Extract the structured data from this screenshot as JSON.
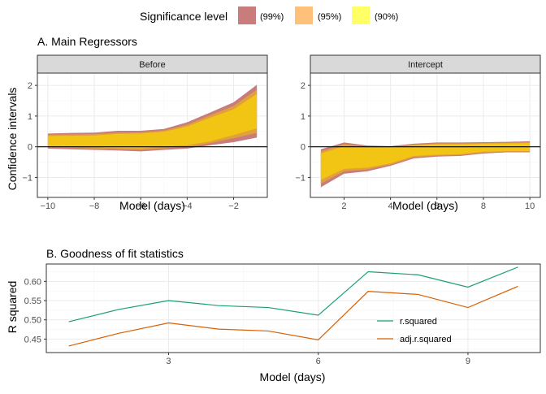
{
  "legend": {
    "title": "Significance level",
    "items": [
      {
        "label": "(99%)",
        "color": "#C97C7C"
      },
      {
        "label": "(95%)",
        "color": "#FFC17A"
      },
      {
        "label": "(90%)",
        "color": "#FFFF66"
      }
    ]
  },
  "section_a_title": "A. Main Regressors",
  "section_b_title": "B. Goodness of fit statistics",
  "band_colors": {
    "c99": "#C97C7C",
    "c95": "#E0A03A",
    "c90": "#F2C414"
  },
  "chart_data": [
    {
      "type": "area",
      "panel": "Before",
      "title": "Before",
      "xlabel": "Model (days)",
      "ylabel": "Confidence intervals",
      "xlim": [
        -10.45,
        -0.55
      ],
      "ylim": [
        -1.65,
        2.4
      ],
      "xticks": [
        -10,
        -8,
        -6,
        -4,
        -2
      ],
      "yticks": [
        -1,
        0,
        1,
        2
      ],
      "hline": 0,
      "x": [
        -10,
        -9,
        -8,
        -7,
        -6,
        -5,
        -4,
        -3,
        -2,
        -1
      ],
      "bands": {
        "ci99": {
          "lower": [
            -0.06,
            -0.08,
            -0.1,
            -0.12,
            -0.15,
            -0.1,
            -0.06,
            0.05,
            0.15,
            0.3
          ],
          "upper": [
            0.43,
            0.45,
            0.46,
            0.52,
            0.52,
            0.58,
            0.8,
            1.12,
            1.45,
            2.02
          ]
        },
        "ci95": {
          "lower": [
            -0.03,
            -0.04,
            -0.06,
            -0.08,
            -0.1,
            -0.05,
            -0.01,
            0.12,
            0.28,
            0.45
          ],
          "upper": [
            0.39,
            0.4,
            0.41,
            0.46,
            0.47,
            0.53,
            0.72,
            1.03,
            1.33,
            1.86
          ]
        },
        "ci90": {
          "lower": [
            0.0,
            0.0,
            -0.02,
            -0.04,
            -0.05,
            0.0,
            0.05,
            0.18,
            0.38,
            0.6
          ],
          "upper": [
            0.35,
            0.36,
            0.37,
            0.42,
            0.43,
            0.49,
            0.66,
            0.95,
            1.22,
            1.72
          ]
        }
      }
    },
    {
      "type": "area",
      "panel": "Intercept",
      "title": "Intercept",
      "xlabel": "Model (days)",
      "ylabel": "",
      "xlim": [
        0.55,
        10.45
      ],
      "ylim": [
        -1.65,
        2.4
      ],
      "xticks": [
        2,
        4,
        6,
        8,
        10
      ],
      "yticks": [
        -1,
        0,
        1,
        2
      ],
      "hline": 0,
      "x": [
        1,
        2,
        3,
        4,
        5,
        6,
        7,
        8,
        9,
        10
      ],
      "bands": {
        "ci99": {
          "lower": [
            -1.32,
            -0.88,
            -0.8,
            -0.62,
            -0.38,
            -0.32,
            -0.3,
            -0.22,
            -0.18,
            -0.18
          ],
          "upper": [
            -0.08,
            0.14,
            0.04,
            0.02,
            0.1,
            0.14,
            0.14,
            0.15,
            0.16,
            0.18
          ]
        },
        "ci95": {
          "lower": [
            -1.2,
            -0.8,
            -0.74,
            -0.58,
            -0.34,
            -0.29,
            -0.27,
            -0.19,
            -0.16,
            -0.16
          ],
          "upper": [
            -0.15,
            0.08,
            0.01,
            0.0,
            0.07,
            0.11,
            0.11,
            0.12,
            0.13,
            0.15
          ]
        },
        "ci90": {
          "lower": [
            -1.08,
            -0.72,
            -0.68,
            -0.54,
            -0.3,
            -0.26,
            -0.24,
            -0.16,
            -0.14,
            -0.14
          ],
          "upper": [
            -0.22,
            0.02,
            -0.02,
            -0.02,
            0.04,
            0.08,
            0.08,
            0.1,
            0.11,
            0.12
          ]
        }
      }
    },
    {
      "type": "line",
      "panel": "Goodness of fit",
      "title": "B. Goodness of fit statistics",
      "xlabel": "Model (days)",
      "ylabel": "R squared",
      "xlim": [
        0.55,
        10.45
      ],
      "ylim": [
        0.415,
        0.645
      ],
      "xticks": [
        3,
        6,
        9
      ],
      "yticks": [
        0.45,
        0.5,
        0.55,
        0.6
      ],
      "ytick_labels": [
        "0.45",
        "0.50",
        "0.55",
        "0.60"
      ],
      "x": [
        1,
        2,
        3,
        4,
        5,
        6,
        7,
        8,
        9,
        10
      ],
      "legend_position": "bottom-right",
      "series": [
        {
          "name": "r.squared",
          "color": "#1B9E77",
          "values": [
            0.495,
            0.527,
            0.55,
            0.537,
            0.532,
            0.512,
            0.625,
            0.617,
            0.585,
            0.637
          ]
        },
        {
          "name": "adj.r.squared",
          "color": "#D95F02",
          "values": [
            0.432,
            0.465,
            0.492,
            0.476,
            0.471,
            0.448,
            0.574,
            0.566,
            0.532,
            0.587
          ]
        }
      ]
    }
  ]
}
